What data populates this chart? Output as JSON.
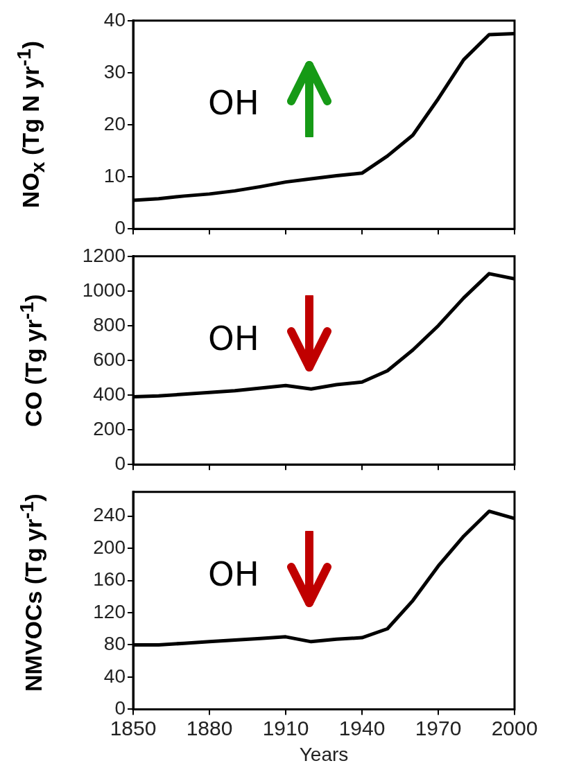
{
  "chart_data": [
    {
      "type": "line",
      "ylabel": "NO$_{x}$ (Tg N yr$^{-1}$)",
      "annotations": [
        "OH"
      ],
      "x": [
        1850,
        1860,
        1870,
        1880,
        1890,
        1900,
        1910,
        1920,
        1930,
        1940,
        1950,
        1960,
        1970,
        1980,
        1990,
        2000
      ],
      "series": [
        {
          "color": "#000000",
          "values": [
            5.5,
            5.8,
            6.3,
            6.7,
            7.3,
            8.1,
            9.0,
            9.6,
            10.2,
            10.7,
            14,
            18,
            25,
            32.5,
            37.3,
            37.5
          ]
        }
      ],
      "xlim": [
        1850,
        2000
      ],
      "xticks": [
        1850,
        1880,
        1910,
        1940,
        1970,
        2000
      ],
      "ylim": [
        0,
        40
      ],
      "yticks": [
        0,
        10,
        20,
        30,
        40
      ],
      "grid": false,
      "legend": false,
      "tick_labels": "y",
      "marker": "none",
      "line_style": "solid"
    },
    {
      "type": "line",
      "ylabel": "CO (Tg yr$^{-1}$)",
      "annotations": [
        "OH"
      ],
      "x": [
        1850,
        1860,
        1870,
        1880,
        1890,
        1900,
        1910,
        1920,
        1930,
        1940,
        1950,
        1960,
        1970,
        1980,
        1990,
        2000
      ],
      "series": [
        {
          "color": "#000000",
          "values": [
            390,
            395,
            405,
            415,
            425,
            440,
            455,
            435,
            460,
            475,
            540,
            660,
            800,
            960,
            1100,
            1070
          ]
        }
      ],
      "xlim": [
        1850,
        2000
      ],
      "xticks": [
        1850,
        1880,
        1910,
        1940,
        1970,
        2000
      ],
      "ylim": [
        0,
        1200
      ],
      "yticks": [
        0,
        200,
        400,
        600,
        800,
        1000,
        1200
      ],
      "grid": false,
      "legend": false,
      "tick_labels": "y",
      "marker": "none",
      "line_style": "solid"
    },
    {
      "type": "line",
      "ylabel": "NMVOCs (Tg yr$^{-1}$)",
      "xlabel": "Years",
      "annotations": [
        "OH"
      ],
      "x": [
        1850,
        1860,
        1870,
        1880,
        1890,
        1900,
        1910,
        1920,
        1930,
        1940,
        1950,
        1960,
        1970,
        1980,
        1990,
        2000
      ],
      "series": [
        {
          "color": "#000000",
          "values": [
            80,
            80,
            82,
            84,
            86,
            88,
            90,
            84,
            87,
            89,
            100,
            135,
            178,
            215,
            246,
            237
          ]
        }
      ],
      "xlim": [
        1850,
        2000
      ],
      "xticks": [
        1850,
        1880,
        1910,
        1940,
        1970,
        2000
      ],
      "ylim": [
        0,
        270
      ],
      "yticks": [
        0,
        40,
        80,
        120,
        160,
        200,
        240
      ],
      "grid": false,
      "legend": false,
      "marker": "none",
      "line_style": "solid"
    }
  ]
}
